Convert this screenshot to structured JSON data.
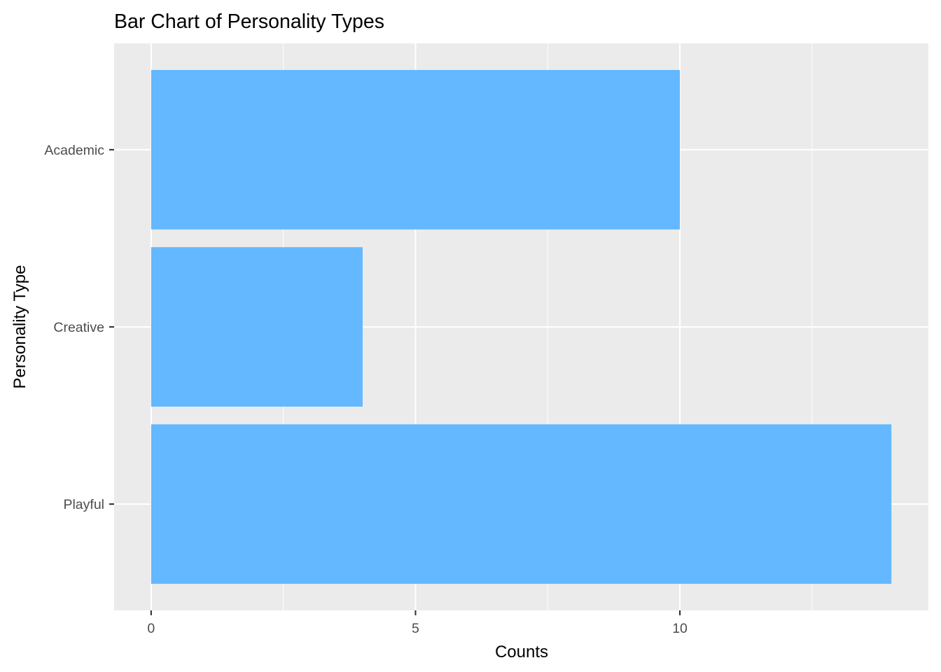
{
  "chart_data": {
    "type": "bar",
    "orientation": "horizontal",
    "title": "Bar Chart of Personality Types",
    "xlabel": "Counts",
    "ylabel": "Personality Type",
    "categories": [
      "Academic",
      "Creative",
      "Playful"
    ],
    "values": [
      10,
      4,
      14
    ],
    "xlim": [
      -0.7,
      14.7
    ],
    "xticks": [
      0,
      5,
      10
    ],
    "xtick_labels": [
      "0",
      "5",
      "10"
    ],
    "grid": true,
    "legend": "none",
    "colors": {
      "bar": "#63b8ff",
      "panel_background": "#ebebeb",
      "grid": "#ffffff"
    }
  }
}
